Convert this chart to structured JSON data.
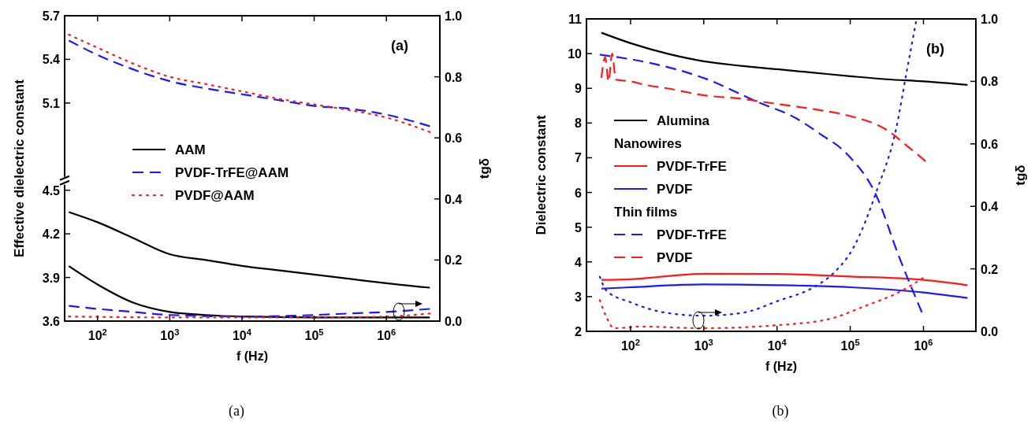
{
  "chart_data": [
    {
      "type": "line",
      "title": "(a)",
      "xlabel": "f (Hz)",
      "ylabel": "Effective dielectric constant",
      "y2label": "tgδ",
      "annotations": [
        "(a)"
      ],
      "log": "x",
      "grid": false,
      "legend": "left",
      "xlim": [
        35,
        5500000
      ],
      "xticks": [
        {
          "value": 100,
          "label": "10$^{2}$"
        },
        {
          "value": 1000,
          "label": "10$^{3}$"
        },
        {
          "value": 10000,
          "label": "10$^{4}$"
        },
        {
          "value": 100000,
          "label": "10$^{5}$"
        },
        {
          "value": 1000000,
          "label": "10$^{6}$"
        }
      ],
      "ylim": [
        3.6,
        5.7
      ],
      "yticks": [
        3.6,
        3.9,
        4.2,
        4.5,
        5.1,
        5.4,
        5.7
      ],
      "y2lim": [
        0,
        1
      ],
      "y2ticks": [
        {
          "value": 0,
          "label": "0.0"
        },
        {
          "value": 0.2,
          "label": "0.2"
        },
        {
          "value": 0.4,
          "label": "0.4"
        },
        {
          "value": 0.6,
          "label": "0.6"
        },
        {
          "value": 0.8,
          "label": "0.8"
        },
        {
          "value": 1,
          "label": "1.0"
        }
      ],
      "series": [
        {
          "name": "AAM",
          "color": "#000000",
          "line_style": "solid",
          "x": [
            40,
            100,
            316,
            1000,
            3162,
            10000,
            31623,
            100000,
            316228,
            1000000,
            4000000
          ],
          "values": [
            4.35,
            4.28,
            4.17,
            4.06,
            4.02,
            3.98,
            3.95,
            3.92,
            3.89,
            3.86,
            3.83
          ]
        },
        {
          "name": "PVDF-TrFE@AAM",
          "color": "#1a1aff",
          "line_style": "dashed",
          "x": [
            40,
            100,
            316,
            1000,
            3162,
            10000,
            31623,
            100000,
            316228,
            1000000,
            4000000
          ],
          "values": [
            5.53,
            5.43,
            5.33,
            5.25,
            5.2,
            5.16,
            5.12,
            5.08,
            5.06,
            5.02,
            4.94
          ]
        },
        {
          "name": "PVDF@AAM",
          "color": "#ff1a1a",
          "line_style": "dotted",
          "x": [
            40,
            100,
            316,
            1000,
            3162,
            10000,
            31623,
            100000,
            316228,
            1000000,
            4000000
          ],
          "values": [
            5.57,
            5.48,
            5.37,
            5.28,
            5.23,
            5.18,
            5.13,
            5.09,
            5.05,
            5.0,
            4.9
          ]
        },
        {
          "color": "#000000",
          "line_style": "solid",
          "axis": "y2",
          "x": [
            40,
            100,
            316,
            1000,
            3162,
            10000,
            100000,
            1000000,
            4000000
          ],
          "values": [
            0.18,
            0.12,
            0.06,
            0.03,
            0.02,
            0.015,
            0.012,
            0.012,
            0.012
          ]
        },
        {
          "color": "#1a1aff",
          "line_style": "dashed",
          "axis": "y2",
          "x": [
            40,
            100,
            316,
            1000,
            10000,
            100000,
            316228,
            1000000,
            4000000
          ],
          "values": [
            0.05,
            0.04,
            0.03,
            0.02,
            0.015,
            0.02,
            0.025,
            0.03,
            0.04
          ]
        },
        {
          "color": "#ff1a1a",
          "line_style": "dotted",
          "axis": "y2",
          "x": [
            40,
            1000,
            10000,
            100000,
            1000000,
            4000000
          ],
          "values": [
            0.015,
            0.012,
            0.012,
            0.012,
            0.015,
            0.025
          ]
        }
      ]
    },
    {
      "type": "line",
      "title": "(b)",
      "xlabel": "f (Hz)",
      "ylabel": "Dielectric constant",
      "y2label": "tgδ",
      "annotations": [
        "Nanowires",
        "Thin films",
        "(b)"
      ],
      "log": "x",
      "grid": false,
      "legend": "left",
      "xlim": [
        25,
        5200000
      ],
      "xticks": [
        {
          "value": 100,
          "label": "10$^{2}$"
        },
        {
          "value": 1000,
          "label": "10$^{3}$"
        },
        {
          "value": 10000,
          "label": "10$^{4}$"
        },
        {
          "value": 100000,
          "label": "10$^{5}$"
        },
        {
          "value": 1000000,
          "label": "10$^{6}$"
        }
      ],
      "ylim": [
        2,
        11
      ],
      "yticks": [
        2,
        3,
        4,
        5,
        6,
        7,
        8,
        9,
        10,
        11
      ],
      "y2lim": [
        0,
        1
      ],
      "y2ticks": [
        {
          "value": 0,
          "label": "0.0"
        },
        {
          "value": 0.2,
          "label": "0.2"
        },
        {
          "value": 0.4,
          "label": "0.4"
        },
        {
          "value": 0.6,
          "label": "0.6"
        },
        {
          "value": 0.8,
          "label": "0.8"
        },
        {
          "value": 1,
          "label": "1.0"
        }
      ],
      "series": [
        {
          "name": "Alumina",
          "color": "#000000",
          "line_style": "solid",
          "x": [
            40,
            100,
            316,
            1000,
            3162,
            10000,
            31623,
            100000,
            316228,
            1000000,
            4000000
          ],
          "values": [
            10.6,
            10.3,
            10.0,
            9.78,
            9.65,
            9.55,
            9.45,
            9.35,
            9.26,
            9.2,
            9.1
          ]
        },
        {
          "name": "PVDF-TrFE",
          "color": "#ff1a1a",
          "line_style": "solid",
          "x": [
            40,
            100,
            1000,
            10000,
            100000,
            1000000,
            4000000
          ],
          "values": [
            3.48,
            3.5,
            3.66,
            3.65,
            3.58,
            3.48,
            3.33
          ]
        },
        {
          "name": "PVDF",
          "color": "#1a1aff",
          "line_style": "solid",
          "x": [
            40,
            100,
            1000,
            10000,
            100000,
            1000000,
            4000000
          ],
          "values": [
            3.23,
            3.27,
            3.35,
            3.33,
            3.27,
            3.12,
            2.96
          ]
        },
        {
          "name": "PVDF-TrFE",
          "color": "#1a1aff",
          "line_style": "dashed",
          "x": [
            38,
            215,
            1050,
            5500,
            17800,
            38000,
            91000,
            224000,
            460000,
            950000
          ],
          "values": [
            9.97,
            9.7,
            9.28,
            8.6,
            8.15,
            7.7,
            7.1,
            5.94,
            4.17,
            2.55
          ]
        },
        {
          "name": "PVDF",
          "color": "#ff1a1a",
          "line_style": "dashed",
          "x": [
            40,
            45,
            50,
            56,
            63,
            100,
            158,
            316,
            1000,
            3162,
            10000,
            31623,
            100000,
            316228,
            630957,
            1070000
          ],
          "values": [
            9.3,
            9.9,
            9.2,
            10.0,
            9.25,
            9.2,
            9.1,
            9.0,
            8.8,
            8.7,
            8.55,
            8.4,
            8.2,
            7.8,
            7.3,
            6.9
          ]
        },
        {
          "color": "#1a1aff",
          "line_style": "dotted",
          "axis": "y2",
          "x": [
            38,
            47,
            100,
            295,
            1000,
            3500,
            10500,
            31000,
            59000,
            112000,
            230000,
            420000,
            600000,
            790000
          ],
          "values": [
            0.175,
            0.13,
            0.093,
            0.06,
            0.05,
            0.06,
            0.098,
            0.14,
            0.186,
            0.27,
            0.45,
            0.645,
            0.84,
            0.99
          ]
        },
        {
          "color": "#ff1a1a",
          "line_style": "dotted",
          "axis": "y2",
          "x": [
            38,
            47,
            59,
            140,
            1000,
            10500,
            53000,
            155000,
            460000,
            980000
          ],
          "values": [
            0.1,
            0.045,
            0.01,
            0.015,
            0.01,
            0.02,
            0.04,
            0.08,
            0.125,
            0.17
          ]
        }
      ]
    }
  ]
}
